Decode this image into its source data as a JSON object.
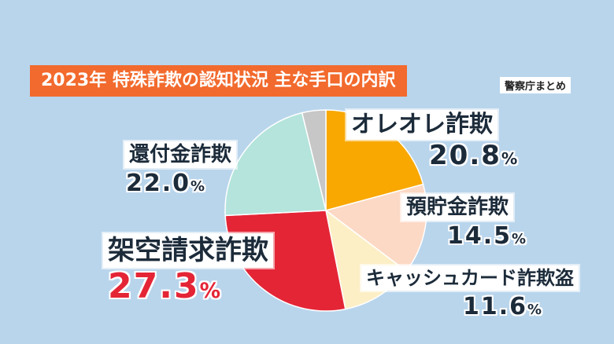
{
  "header": {
    "title": "2023年 特殊詐欺の認知状況 主な手口の内訳",
    "source": "警察庁まとめ"
  },
  "chart_data": {
    "type": "pie",
    "title": "2023年 特殊詐欺の認知状況 主な手口の内訳",
    "slices": [
      {
        "label": "オレオレ詐欺",
        "value": 20.8,
        "display": "20.8",
        "color": "#f8a800"
      },
      {
        "label": "預貯金詐欺",
        "value": 14.5,
        "display": "14.5",
        "color": "#fcd9c5"
      },
      {
        "label": "キャッシュカード詐欺盗",
        "value": 11.6,
        "display": "11.6",
        "color": "#fcefc6"
      },
      {
        "label": "架空請求詐欺",
        "value": 27.3,
        "display": "27.3",
        "color": "#e42536"
      },
      {
        "label": "還付金詐欺",
        "value": 22.0,
        "display": "22.0",
        "color": "#b4e4dc"
      },
      {
        "label": "",
        "value": 3.8,
        "display": "",
        "color": "#c7c7c7"
      }
    ],
    "unit": "%",
    "start_angle_deg": 0,
    "direction": "clockwise"
  }
}
